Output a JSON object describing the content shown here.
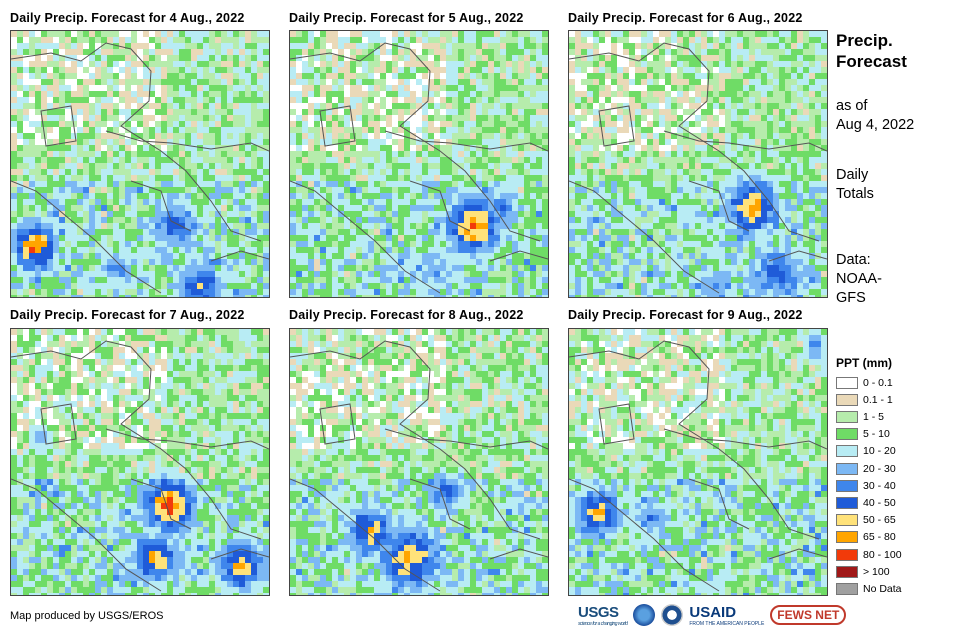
{
  "panels": [
    {
      "title": "Daily Precip. Forecast for 4 Aug., 2022"
    },
    {
      "title": "Daily Precip. Forecast for 5 Aug., 2022"
    },
    {
      "title": "Daily Precip. Forecast for 6 Aug., 2022"
    },
    {
      "title": "Daily Precip. Forecast for 7 Aug., 2022"
    },
    {
      "title": "Daily Precip. Forecast for 8 Aug., 2022"
    },
    {
      "title": "Daily Precip. Forecast for 9 Aug., 2022"
    }
  ],
  "sidebar": {
    "title_line1": "Precip.",
    "title_line2": "Forecast",
    "asof_line1": "as of",
    "asof_line2": "Aug 4, 2022",
    "totals_line1": "Daily",
    "totals_line2": "Totals",
    "data_line1": "Data:",
    "data_line2": "NOAA-",
    "data_line3": "GFS"
  },
  "legend": {
    "title": "PPT (mm)",
    "items": [
      {
        "label": "0 - 0.1",
        "color": "#ffffff"
      },
      {
        "label": "0.1 - 1",
        "color": "#ead9b8"
      },
      {
        "label": "1 - 5",
        "color": "#b6ecac"
      },
      {
        "label": "5 - 10",
        "color": "#6fdc66"
      },
      {
        "label": "10 - 20",
        "color": "#b8ecf4"
      },
      {
        "label": "20 - 30",
        "color": "#7cb8f4"
      },
      {
        "label": "30 - 40",
        "color": "#3f86ec"
      },
      {
        "label": "40 - 50",
        "color": "#1f5bd8"
      },
      {
        "label": "50 - 65",
        "color": "#ffe27a"
      },
      {
        "label": "65 - 80",
        "color": "#ffa500"
      },
      {
        "label": "80 - 100",
        "color": "#f23a0a"
      },
      {
        "label": "> 100",
        "color": "#a01818"
      },
      {
        "label": "No Data",
        "color": "#a0a0a0"
      }
    ]
  },
  "footer": {
    "credit": "Map produced by USGS/EROS",
    "logos": {
      "usgs": "USGS",
      "usgs_tagline": "science for a changing world",
      "usaid": "USAID",
      "usaid_tagline": "FROM THE AMERICAN PEOPLE",
      "fews": "FEWS NET"
    }
  }
}
